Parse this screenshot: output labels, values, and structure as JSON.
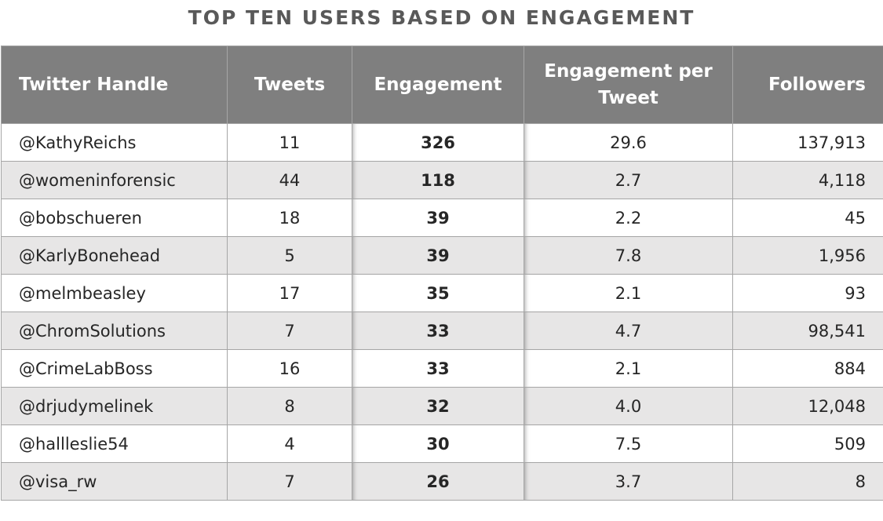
{
  "chart_data": {
    "type": "table",
    "title": "TOP TEN USERS BASED ON ENGAGEMENT",
    "columns": [
      "Twitter Handle",
      "Tweets",
      "Engagement",
      "Engagement per Tweet",
      "Followers"
    ],
    "rows": [
      [
        "@KathyReichs",
        "11",
        "326",
        "29.6",
        "137,913"
      ],
      [
        "@womeninforensic",
        "44",
        "118",
        "2.7",
        "4,118"
      ],
      [
        "@bobschueren",
        "18",
        "39",
        "2.2",
        "45"
      ],
      [
        "@KarlyBonehead",
        "5",
        "39",
        "7.8",
        "1,956"
      ],
      [
        "@melmbeasley",
        "17",
        "35",
        "2.1",
        "93"
      ],
      [
        "@ChromSolutions",
        "7",
        "33",
        "4.7",
        "98,541"
      ],
      [
        "@CrimeLabBoss",
        "16",
        "33",
        "2.1",
        "884"
      ],
      [
        "@drjudymelinek",
        "8",
        "32",
        "4.0",
        "12,048"
      ],
      [
        "@hallleslie54",
        "4",
        "30",
        "7.5",
        "509"
      ],
      [
        "@visa_rw",
        "7",
        "26",
        "3.7",
        "8"
      ]
    ]
  },
  "colors": {
    "header_bg": "#7f7f7f",
    "header_text": "#ffffff",
    "alt_row_bg": "#e7e6e6",
    "title_text": "#595959"
  }
}
